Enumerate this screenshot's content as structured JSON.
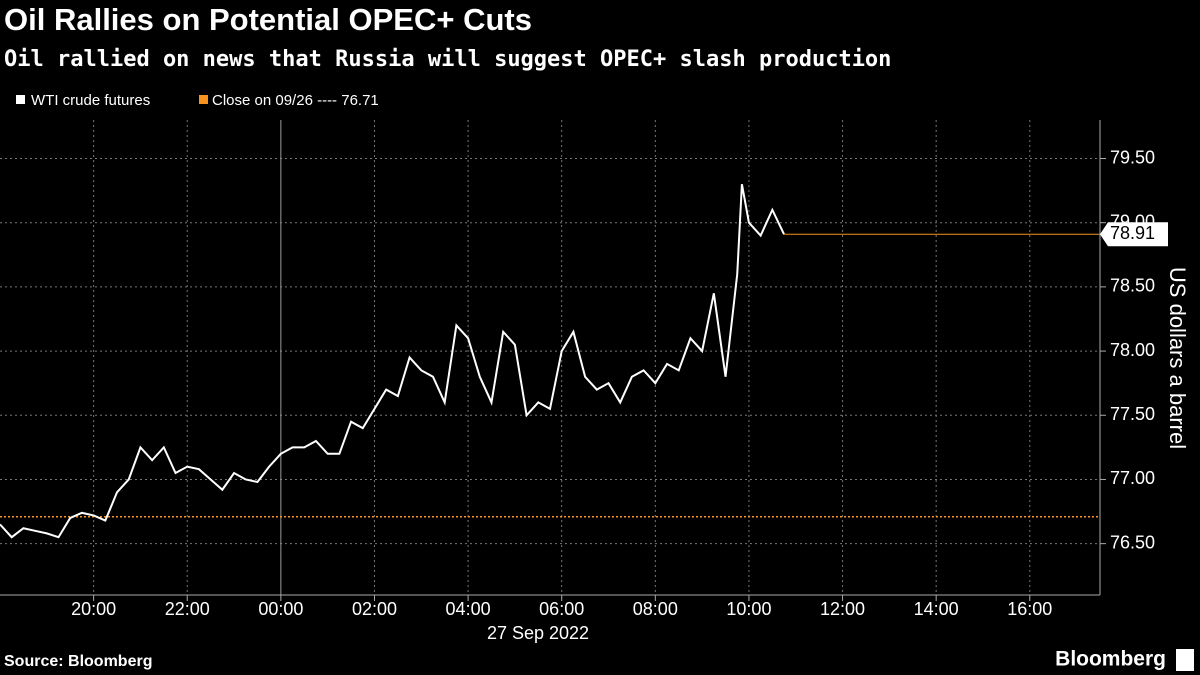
{
  "chart_data": {
    "type": "line",
    "title": "Oil Rallies on Potential OPEC+ Cuts",
    "subtitle": "Oil rallied on news that Russia will suggest OPEC+ slash production",
    "y_label": "US dollars a barrel",
    "date_label": "27 Sep 2022",
    "source": "Source: Bloomberg",
    "brand": "Bloomberg",
    "series": [
      {
        "name": "WTI crude futures",
        "color": "#ffffff",
        "x": [
          -6.0,
          -5.75,
          -5.5,
          -5.25,
          -5.0,
          -4.75,
          -4.5,
          -4.25,
          -4.0,
          -3.75,
          -3.5,
          -3.25,
          -3.0,
          -2.75,
          -2.5,
          -2.25,
          -2.0,
          -1.75,
          -1.5,
          -1.25,
          -1.0,
          -0.75,
          -0.5,
          -0.25,
          0,
          0.25,
          0.5,
          0.75,
          1.0,
          1.25,
          1.5,
          1.75,
          2.0,
          2.25,
          2.5,
          2.75,
          3.0,
          3.25,
          3.5,
          3.75,
          4.0,
          4.25,
          4.5,
          4.75,
          5.0,
          5.25,
          5.5,
          5.75,
          6.0,
          6.25,
          6.5,
          6.75,
          7.0,
          7.25,
          7.5,
          7.75,
          8.0,
          8.25,
          8.5,
          8.75,
          9.0,
          9.25,
          9.5,
          9.75,
          9.85,
          10.0,
          10.25,
          10.5,
          10.75
        ],
        "values": [
          76.65,
          76.55,
          76.62,
          76.6,
          76.58,
          76.55,
          76.7,
          76.74,
          76.72,
          76.68,
          76.9,
          77.0,
          77.25,
          77.15,
          77.25,
          77.05,
          77.1,
          77.08,
          77.0,
          76.92,
          77.05,
          77.0,
          76.98,
          77.1,
          77.2,
          77.25,
          77.25,
          77.3,
          77.2,
          77.2,
          77.45,
          77.4,
          77.55,
          77.7,
          77.65,
          77.95,
          77.85,
          77.8,
          77.6,
          78.2,
          78.1,
          77.8,
          77.6,
          78.15,
          78.05,
          77.5,
          77.6,
          77.55,
          78.0,
          78.15,
          77.8,
          77.7,
          77.75,
          77.6,
          77.8,
          77.85,
          77.75,
          77.9,
          77.85,
          78.1,
          78.0,
          78.45,
          77.8,
          78.6,
          79.3,
          79.0,
          78.9,
          79.1,
          78.91
        ]
      }
    ],
    "reference": {
      "label": "Close on 09/26 ----",
      "value": 76.71,
      "color": "#f7931e"
    },
    "xlim": [
      -6.0,
      17.5
    ],
    "xticks": [
      {
        "value": -4,
        "label": "20:00"
      },
      {
        "value": -2,
        "label": "22:00"
      },
      {
        "value": 0,
        "label": "00:00"
      },
      {
        "value": 2,
        "label": "02:00"
      },
      {
        "value": 4,
        "label": "04:00"
      },
      {
        "value": 6,
        "label": "06:00"
      },
      {
        "value": 8,
        "label": "08:00"
      },
      {
        "value": 10,
        "label": "10:00"
      },
      {
        "value": 12,
        "label": "12:00"
      },
      {
        "value": 14,
        "label": "14:00"
      },
      {
        "value": 16,
        "label": "16:00"
      }
    ],
    "ylim": [
      76.1,
      79.8
    ],
    "yticks": [
      {
        "value": 76.5,
        "label": "76.50"
      },
      {
        "value": 77,
        "label": "77.00"
      },
      {
        "value": 77.5,
        "label": "77.50"
      },
      {
        "value": 78,
        "label": "78.00"
      },
      {
        "value": 78.5,
        "label": "78.50"
      },
      {
        "value": 79,
        "label": "79.00"
      },
      {
        "value": 79.5,
        "label": "79.50"
      }
    ],
    "grid": true
  }
}
